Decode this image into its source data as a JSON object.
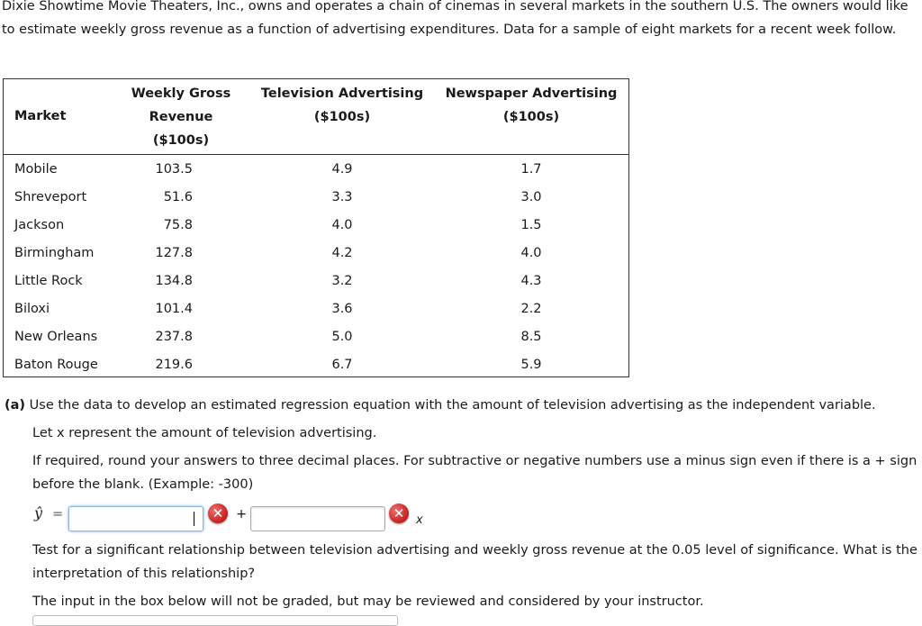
{
  "intro": "Dixie Showtime Movie Theaters, Inc., owns and operates a chain of cinemas in several markets in the southern U.S. The owners would like to estimate weekly gross revenue as a function of advertising expenditures. Data for a sample of eight markets for a recent week follow.",
  "table": {
    "headers": {
      "market": "Market",
      "weekly_gross": [
        "Weekly Gross",
        "Revenue",
        "($100s)"
      ],
      "tv": [
        "Television Advertising",
        "($100s)"
      ],
      "newspaper": [
        "Newspaper Advertising",
        "($100s)"
      ]
    },
    "rows": [
      {
        "market": "Mobile",
        "revenue": "103.5",
        "tv": "4.9",
        "newspaper": "1.7"
      },
      {
        "market": "Shreveport",
        "revenue": "51.6",
        "tv": "3.3",
        "newspaper": "3.0"
      },
      {
        "market": "Jackson",
        "revenue": "75.8",
        "tv": "4.0",
        "newspaper": "1.5"
      },
      {
        "market": "Birmingham",
        "revenue": "127.8",
        "tv": "4.2",
        "newspaper": "4.0"
      },
      {
        "market": "Little Rock",
        "revenue": "134.8",
        "tv": "3.2",
        "newspaper": "4.3"
      },
      {
        "market": "Biloxi",
        "revenue": "101.4",
        "tv": "3.6",
        "newspaper": "2.2"
      },
      {
        "market": "New Orleans",
        "revenue": "237.8",
        "tv": "5.0",
        "newspaper": "8.5"
      },
      {
        "market": "Baton Rouge",
        "revenue": "219.6",
        "tv": "6.7",
        "newspaper": "5.9"
      }
    ]
  },
  "part_a": {
    "label": "(a)",
    "text": "Use the data to develop an estimated regression equation with the amount of television advertising as the independent variable.",
    "let_x": "Let x represent the amount of television advertising.",
    "instructions": "If required, round your answers to three decimal places. For subtractive or negative numbers use a minus sign even if there is a + sign before the blank. (Example: -300)",
    "yhat_symbol": "ŷ",
    "equals": "=",
    "plus": "+",
    "x_symbol": "x",
    "intercept_value": "",
    "slope_value": "",
    "error_icon": "error-x-icon",
    "test_text": "Test for a significant relationship between television advertising and weekly gross revenue at the 0.05 level of significance. What is the interpretation of this relationship?",
    "note_text": "The input in the box below will not be graded, but may be reviewed and considered by your instructor."
  }
}
